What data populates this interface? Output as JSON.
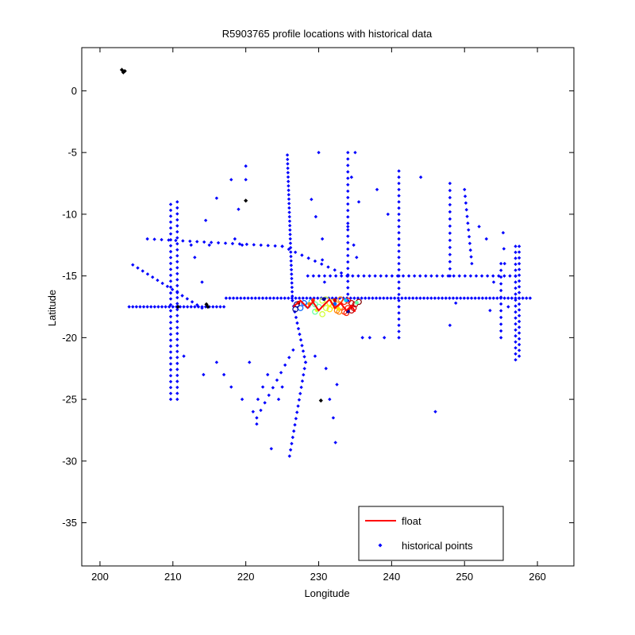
{
  "chart_data": {
    "type": "scatter",
    "title": "R5903765 profile locations with historical data",
    "xlabel": "Longitude",
    "ylabel": "Latitude",
    "xlim": [
      197.5,
      265
    ],
    "ylim": [
      -38.5,
      3.5
    ],
    "xticks": [
      200,
      210,
      220,
      230,
      240,
      250,
      260
    ],
    "yticks": [
      0,
      -5,
      -10,
      -15,
      -20,
      -25,
      -30,
      -35
    ],
    "grid": false,
    "legend_position": "bottom-right",
    "colors": {
      "historical": "#0000ff",
      "float": "#ff0000",
      "black_points": "#000000",
      "cluster_palette": [
        "#00008f",
        "#0060ff",
        "#00cfff",
        "#5fff9f",
        "#cfff30",
        "#ffdf00",
        "#ff8000",
        "#ff2000",
        "#c00000",
        "#800000"
      ]
    },
    "legend": [
      {
        "label": "float",
        "marker": "line",
        "color": "#ff0000"
      },
      {
        "label": "historical points",
        "marker": "dot",
        "color": "#0000ff"
      }
    ],
    "series": [
      {
        "name": "historical points",
        "type": "scatter",
        "segments": [
          {
            "from": [
              204,
              -17.5
            ],
            "to": [
              217,
              -17.5
            ],
            "n": 27
          },
          {
            "from": [
              217.3,
              -16.8
            ],
            "to": [
              259,
              -16.8
            ],
            "n": 84
          },
          {
            "from": [
              228.5,
              -15
            ],
            "to": [
              257,
              -15
            ],
            "n": 38
          },
          {
            "from": [
              206.5,
              -12
            ],
            "to": [
              225,
              -12.6
            ],
            "n": 20
          },
          {
            "from": [
              225,
              -12.6
            ],
            "to": [
              234,
              -15
            ],
            "n": 11
          },
          {
            "from": [
              204.5,
              -14.1
            ],
            "to": [
              214,
              -17.6
            ],
            "n": 15
          },
          {
            "from": [
              209.7,
              -9.2
            ],
            "to": [
              209.7,
              -25
            ],
            "n": 34
          },
          {
            "from": [
              210.6,
              -9
            ],
            "to": [
              210.6,
              -25
            ],
            "n": 34
          },
          {
            "from": [
              225.7,
              -5.2
            ],
            "to": [
              226.4,
              -17
            ],
            "n": 34
          },
          {
            "from": [
              226.4,
              -17
            ],
            "to": [
              228.2,
              -22
            ],
            "n": 12
          },
          {
            "from": [
              228.2,
              -22
            ],
            "to": [
              226,
              -29.6
            ],
            "n": 16
          },
          {
            "from": [
              221,
              -26
            ],
            "to": [
              223,
              -23
            ],
            "n": 4
          },
          {
            "from": [
              221.5,
              -26.5
            ],
            "to": [
              226.5,
              -21
            ],
            "n": 10
          },
          {
            "from": [
              234,
              -5
            ],
            "to": [
              234,
              -17
            ],
            "n": 24
          },
          {
            "from": [
              241,
              -6.5
            ],
            "to": [
              241,
              -20
            ],
            "n": 28
          },
          {
            "from": [
              248,
              -7.5
            ],
            "to": [
              248,
              -15
            ],
            "n": 14
          },
          {
            "from": [
              250,
              -8
            ],
            "to": [
              251,
              -14
            ],
            "n": 12
          },
          {
            "from": [
              257,
              -12.6
            ],
            "to": [
              257,
              -21.8
            ],
            "n": 20
          },
          {
            "from": [
              257.5,
              -12.6
            ],
            "to": [
              257.5,
              -21.5
            ],
            "n": 20
          },
          {
            "from": [
              255,
              -14
            ],
            "to": [
              255,
              -20
            ],
            "n": 12
          }
        ],
        "points": [
          [
            230,
            -5
          ],
          [
            230.5,
            -12
          ],
          [
            230.5,
            -13.7
          ],
          [
            230.8,
            -15.5
          ],
          [
            229.6,
            -10.2
          ],
          [
            229,
            -8.8
          ],
          [
            235,
            -5
          ],
          [
            234.5,
            -7
          ],
          [
            235.5,
            -9
          ],
          [
            234,
            -11
          ],
          [
            234.8,
            -12.5
          ],
          [
            235.2,
            -13.5
          ],
          [
            237,
            -20
          ],
          [
            239,
            -20
          ],
          [
            236,
            -20
          ],
          [
            232.5,
            -23.8
          ],
          [
            232,
            -26.5
          ],
          [
            232.3,
            -28.5
          ],
          [
            231.5,
            -25
          ],
          [
            238,
            -8
          ],
          [
            239.5,
            -10
          ],
          [
            244,
            -7
          ],
          [
            246,
            -26
          ],
          [
            248,
            -19
          ],
          [
            252,
            -11
          ],
          [
            253,
            -12
          ],
          [
            254,
            -15.5
          ],
          [
            255.3,
            -11.5
          ],
          [
            255.4,
            -12.8
          ],
          [
            255.5,
            -14
          ],
          [
            256,
            -17.5
          ],
          [
            253.5,
            -17.8
          ],
          [
            248.8,
            -17.2
          ],
          [
            214,
            -15.5
          ],
          [
            213,
            -13.5
          ],
          [
            215,
            -12.5
          ],
          [
            216,
            -8.7
          ],
          [
            218,
            -7.2
          ],
          [
            219,
            -9.6
          ],
          [
            220,
            -6.1
          ],
          [
            220,
            -7.2
          ],
          [
            218.5,
            -12
          ],
          [
            219.5,
            -12.5
          ],
          [
            214.5,
            -10.5
          ],
          [
            212.5,
            -12.5
          ],
          [
            211.5,
            -21.5
          ],
          [
            214.2,
            -23
          ],
          [
            216,
            -22
          ],
          [
            217,
            -23
          ],
          [
            218,
            -24
          ],
          [
            219.5,
            -25
          ],
          [
            220.5,
            -22
          ],
          [
            221.5,
            -27
          ],
          [
            223.5,
            -29
          ],
          [
            224.5,
            -25
          ],
          [
            225,
            -24
          ],
          [
            231,
            -22.5
          ],
          [
            229.5,
            -21.5
          ]
        ]
      },
      {
        "name": "",
        "type": "scatter",
        "points": [
          [
            203,
            1.7
          ],
          [
            203.2,
            1.5
          ],
          [
            203.4,
            1.6
          ],
          [
            220,
            -8.9
          ],
          [
            210.7,
            -17.5
          ],
          [
            214.6,
            -17.3
          ],
          [
            214.8,
            -17.5
          ],
          [
            230.3,
            -25.1
          ]
        ]
      },
      {
        "name": "float",
        "type": "line",
        "points": [
          [
            226.5,
            -17.5
          ],
          [
            227.5,
            -17.0
          ],
          [
            228.5,
            -17.6
          ],
          [
            229.2,
            -17.1
          ],
          [
            230.0,
            -17.8
          ],
          [
            230.8,
            -17.3
          ],
          [
            231.5,
            -16.9
          ],
          [
            232.2,
            -17.6
          ],
          [
            233.0,
            -17.2
          ],
          [
            233.8,
            -17.8
          ],
          [
            234.5,
            -17.4
          ],
          [
            235.0,
            -17.9
          ]
        ]
      },
      {
        "name": "",
        "type": "cluster",
        "points": [
          [
            230.5,
            -17.0
          ],
          [
            231.0,
            -16.9
          ],
          [
            231.5,
            -17.2
          ],
          [
            232.0,
            -17.4
          ],
          [
            232.5,
            -17.3
          ],
          [
            233.0,
            -16.9
          ],
          [
            233.5,
            -17.1
          ],
          [
            234.0,
            -17.0
          ],
          [
            234.5,
            -17.2
          ],
          [
            235.0,
            -17.3
          ],
          [
            235.5,
            -17.1
          ],
          [
            230.0,
            -17.5
          ],
          [
            229.5,
            -17.9
          ],
          [
            230.5,
            -18.1
          ],
          [
            231.5,
            -17.7
          ],
          [
            232.5,
            -17.8
          ],
          [
            233.5,
            -17.9
          ],
          [
            234.5,
            -17.8
          ],
          [
            228.5,
            -17.4
          ],
          [
            227.5,
            -17.6
          ],
          [
            228.0,
            -17.2
          ],
          [
            229.0,
            -17.1
          ],
          [
            229.5,
            -17.3
          ],
          [
            231.0,
            -17.6
          ],
          [
            232.0,
            -17.1
          ],
          [
            233.0,
            -17.5
          ],
          [
            234.0,
            -17.6
          ],
          [
            227.0,
            -17.3
          ],
          [
            226.8,
            -17.7
          ],
          [
            232.8,
            -17.9
          ],
          [
            233.8,
            -18.0
          ],
          [
            234.8,
            -17.6
          ]
        ]
      }
    ]
  }
}
